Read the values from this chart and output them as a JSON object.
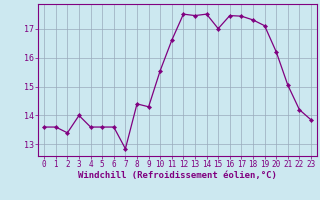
{
  "x": [
    0,
    1,
    2,
    3,
    4,
    5,
    6,
    7,
    8,
    9,
    10,
    11,
    12,
    13,
    14,
    15,
    16,
    17,
    18,
    19,
    20,
    21,
    22,
    23
  ],
  "y": [
    13.6,
    13.6,
    13.4,
    14.0,
    13.6,
    13.6,
    13.6,
    12.85,
    14.4,
    14.3,
    15.55,
    16.6,
    17.5,
    17.45,
    17.5,
    17.0,
    17.45,
    17.43,
    17.3,
    17.1,
    16.2,
    15.05,
    14.2,
    13.85
  ],
  "line_color": "#800080",
  "marker": "D",
  "marker_size": 2.2,
  "bg_color": "#cce8f0",
  "grid_color": "#99aabb",
  "xlabel": "Windchill (Refroidissement éolien,°C)",
  "ylim": [
    12.6,
    17.85
  ],
  "xlim": [
    -0.5,
    23.5
  ],
  "yticks": [
    13,
    14,
    15,
    16,
    17
  ],
  "xticks": [
    0,
    1,
    2,
    3,
    4,
    5,
    6,
    7,
    8,
    9,
    10,
    11,
    12,
    13,
    14,
    15,
    16,
    17,
    18,
    19,
    20,
    21,
    22,
    23
  ],
  "tick_fontsize": 5.5,
  "xlabel_fontsize": 6.5,
  "linewidth": 0.9
}
